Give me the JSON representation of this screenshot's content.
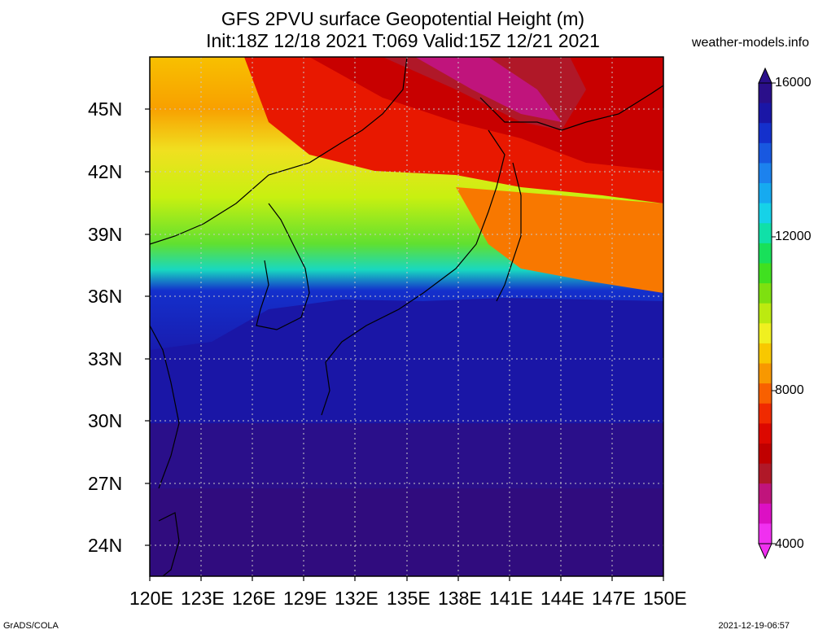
{
  "title_line1": "GFS 2PVU surface Geopotential Height (m)",
  "title_line2": "Init:18Z 12/18 2021 T:069 Valid:15Z 12/21 2021",
  "credit": "weather-models.info",
  "footer_left": "GrADS/COLA",
  "footer_right": "2021-12-19-06:57",
  "map": {
    "lon_range": [
      120,
      150
    ],
    "lat_range": [
      22.5,
      47.5
    ],
    "lon_ticks": [
      "120E",
      "123E",
      "126E",
      "129E",
      "132E",
      "135E",
      "138E",
      "141E",
      "144E",
      "147E",
      "150E"
    ],
    "lat_ticks": [
      "45N",
      "42N",
      "39N",
      "36N",
      "33N",
      "30N",
      "27N",
      "24N"
    ],
    "grid": true
  },
  "colorbar": {
    "labels": [
      "16000",
      "12000",
      "8000",
      "4000"
    ],
    "colors": [
      "#2a0f8a",
      "#1a16a6",
      "#1430cc",
      "#1858e0",
      "#1c82ee",
      "#16aaf0",
      "#16d2e8",
      "#10e0a8",
      "#18e05a",
      "#40e020",
      "#7ee010",
      "#bcea10",
      "#f0f020",
      "#f8c800",
      "#f89800",
      "#f86000",
      "#f02a00",
      "#dc0800",
      "#c00000",
      "#b01828",
      "#c0147c",
      "#dc10c4",
      "#f030f0"
    ]
  }
}
